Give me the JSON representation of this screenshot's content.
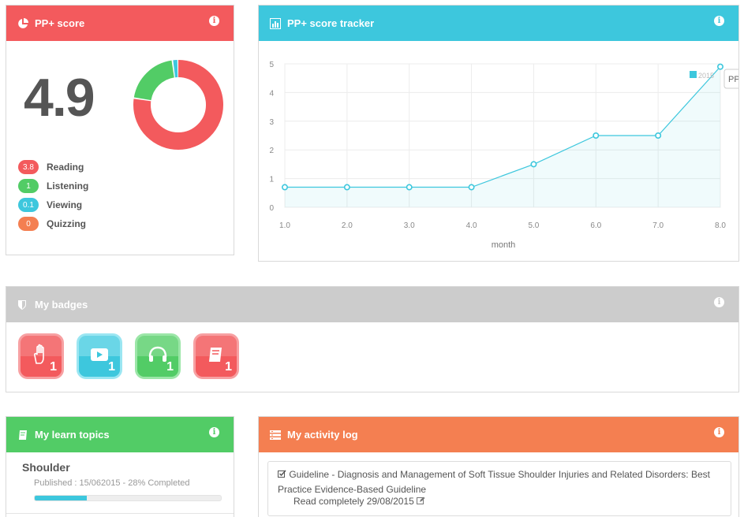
{
  "score_panel": {
    "title": "PP+ score",
    "score": "4.9",
    "colors": {
      "reading": "#f35a5d",
      "listening": "#52cc66",
      "viewing": "#3dc7dd",
      "quizzing": "#f47f51"
    },
    "breakdown": [
      {
        "value": "3.8",
        "label": "Reading"
      },
      {
        "value": "1",
        "label": "Listening"
      },
      {
        "value": "0.1",
        "label": "Viewing"
      },
      {
        "value": "0",
        "label": "Quizzing"
      }
    ]
  },
  "tracker": {
    "title": "PP+ score tracker",
    "tooltip_fragment": "PP+",
    "chart_data": {
      "type": "area",
      "x": [
        1.0,
        2.0,
        3.0,
        4.0,
        5.0,
        6.0,
        7.0,
        8.0
      ],
      "x_tick_labels": [
        "1.0",
        "2.0",
        "3.0",
        "4.0",
        "5.0",
        "6.0",
        "7.0",
        "8.0"
      ],
      "y_tick_labels": [
        "0",
        "1",
        "2",
        "3",
        "4",
        "5"
      ],
      "series": [
        {
          "name": "2015",
          "values": [
            0.7,
            0.7,
            0.7,
            0.7,
            1.5,
            2.5,
            2.5,
            4.9
          ]
        }
      ],
      "xlabel": "month",
      "ylabel": "",
      "xlim": [
        1,
        8
      ],
      "ylim": [
        0,
        5
      ],
      "grid": true,
      "legend": "top-right",
      "color": "#3dc7dd"
    }
  },
  "badges": {
    "title": "My badges",
    "items": [
      {
        "icon": "hand-icon",
        "count": "1",
        "color": "#f35a5d"
      },
      {
        "icon": "video-play-icon",
        "count": "1",
        "color": "#3dc7dd"
      },
      {
        "icon": "headphones-icon",
        "count": "1",
        "color": "#52cc66"
      },
      {
        "icon": "book-icon",
        "count": "1",
        "color": "#f35a5d"
      }
    ]
  },
  "topics": {
    "title": "My learn topics",
    "items": [
      {
        "name": "Shoulder",
        "meta": "Published : 15/062015 - 28% Completed",
        "progress": 0.28
      }
    ]
  },
  "activity": {
    "title": "My activity log",
    "items": [
      {
        "text": "Guideline - Diagnosis and Management of Soft Tissue Shoulder Injuries and Related Disorders: Best Practice Evidence-Based Guideline",
        "status": "Read completely 29/08/2015"
      }
    ]
  }
}
